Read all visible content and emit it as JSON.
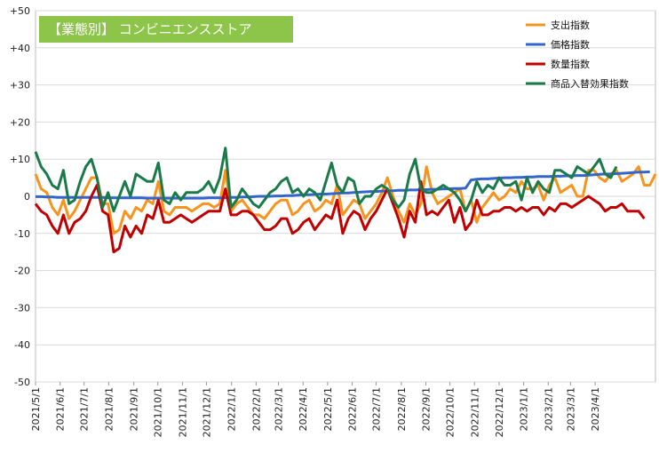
{
  "chart_data": {
    "type": "line",
    "title": "【業態別】 コンビニエンスストア",
    "xlabel": "",
    "ylabel": "",
    "ylim": [
      -50,
      50
    ],
    "y_ticks": [
      50,
      40,
      30,
      20,
      10,
      0,
      -10,
      -20,
      -30,
      -40,
      -50
    ],
    "y_tick_labels": [
      "+50",
      "+40",
      "+30",
      "+20",
      "+10",
      "0",
      "-10",
      "-20",
      "-30",
      "-40",
      "-50"
    ],
    "x_tick_labels": [
      "2021/5/1",
      "2021/6/1",
      "2021/7/1",
      "2021/8/1",
      "2021/9/1",
      "2021/10/1",
      "2021/11/1",
      "2021/12/1",
      "2022/1/1",
      "2022/2/1",
      "2022/3/1",
      "2022/4/1",
      "2022/5/1",
      "2022/6/1",
      "2022/7/1",
      "2022/8/1",
      "2022/9/1",
      "2022/10/1",
      "2022/11/1",
      "2022/12/1",
      "2023/1/1",
      "2023/2/1",
      "2023/3/1",
      "2023/4/1"
    ],
    "x_tick_weeks": [
      0,
      4.4,
      8.7,
      13.1,
      17.6,
      21.9,
      26.3,
      30.6,
      35.1,
      39.5,
      43.5,
      47.9,
      52.3,
      56.7,
      61.0,
      65.5,
      69.9,
      74.2,
      78.6,
      83.0,
      87.4,
      91.8,
      95.8,
      100.2
    ],
    "grid": true,
    "legend_position": "top-right",
    "series": [
      {
        "name": "支出指数",
        "color": "#f7941d",
        "values": [
          6,
          2,
          1,
          -3,
          -5,
          -1,
          -6,
          -4,
          -1,
          2,
          5,
          5,
          -2,
          -2,
          -10,
          -9,
          -4,
          -6,
          -3,
          -4,
          -1,
          -2,
          4,
          -4,
          -5,
          -3,
          -3,
          -3,
          -4,
          -3,
          -2,
          -2,
          -3,
          -2,
          7,
          -4,
          -2,
          -1,
          -3,
          -5,
          -5,
          -6,
          -4,
          -2,
          -1,
          -1,
          -5,
          -4,
          -2,
          -1,
          -4,
          -3,
          -1,
          -2,
          3,
          -5,
          -3,
          -1,
          -2,
          -6,
          -4,
          -2,
          1,
          5,
          0,
          -4,
          -7,
          -2,
          -5,
          -2,
          8,
          1,
          -2,
          -1,
          0,
          1,
          2,
          -4,
          -1,
          -7,
          -3,
          -1,
          1,
          -1,
          0,
          2,
          1,
          4,
          2,
          2,
          3,
          -1,
          3,
          5,
          1,
          2,
          3,
          0,
          0,
          7,
          7,
          5,
          4,
          6,
          7,
          4,
          5,
          6,
          8,
          3,
          3,
          6
        ]
      },
      {
        "name": "価格指数",
        "color": "#3366cc",
        "values": [
          -0.1,
          -0.1,
          -0.2,
          -0.2,
          -0.3,
          -0.3,
          -0.3,
          -0.3,
          -0.3,
          -0.3,
          -0.3,
          -0.3,
          -0.3,
          -0.4,
          -0.4,
          -0.4,
          -0.4,
          -0.4,
          -0.4,
          -0.4,
          -0.5,
          -0.5,
          -0.5,
          -0.5,
          -0.5,
          -0.5,
          -0.5,
          -0.5,
          -0.5,
          -0.5,
          -0.5,
          -0.4,
          -0.4,
          -0.4,
          -0.4,
          -0.3,
          -0.3,
          -0.2,
          -0.2,
          -0.1,
          0,
          0,
          0,
          0.1,
          0.1,
          0.2,
          0.2,
          0.3,
          0.4,
          0.4,
          0.5,
          0.6,
          0.6,
          0.7,
          0.8,
          0.9,
          0.9,
          1.0,
          1.1,
          1.2,
          1.3,
          1.3,
          1.4,
          1.5,
          1.5,
          1.6,
          1.6,
          1.7,
          1.7,
          1.8,
          1.8,
          1.9,
          1.9,
          2.0,
          2.0,
          2.1,
          2.1,
          2.2,
          4.4,
          4.6,
          4.7,
          4.7,
          4.8,
          4.9,
          5.0,
          5.0,
          5.1,
          5.1,
          5.2,
          5.2,
          5.3,
          5.3,
          5.3,
          5.4,
          5.4,
          5.5,
          5.5,
          5.6,
          5.6,
          5.7,
          5.8,
          5.9,
          6.0,
          6.0,
          6.1,
          6.2,
          6.3,
          6.4,
          6.5,
          6.5,
          6.6
        ]
      },
      {
        "name": "数量指数",
        "color": "#c00000",
        "values": [
          -2,
          -4,
          -5,
          -8,
          -10,
          -5,
          -10,
          -7,
          -6,
          -4,
          0,
          3,
          -4,
          -5,
          -15,
          -14,
          -8,
          -11,
          -8,
          -10,
          -5,
          -6,
          -1,
          -7,
          -7,
          -6,
          -5,
          -6,
          -7,
          -6,
          -5,
          -4,
          -4,
          -4,
          2,
          -5,
          -5,
          -4,
          -4,
          -5,
          -7,
          -9,
          -9,
          -8,
          -6,
          -6,
          -10,
          -9,
          -7,
          -6,
          -9,
          -7,
          -5,
          -6,
          -1,
          -10,
          -6,
          -4,
          -5,
          -9,
          -6,
          -4,
          -1,
          2,
          -2,
          -6,
          -11,
          -4,
          -7,
          4,
          -5,
          -4,
          -5,
          -3,
          -1,
          -7,
          -3,
          -9,
          -7,
          -1,
          -5,
          -5,
          -4,
          -4,
          -3,
          -3,
          -4,
          -3,
          -4,
          -3,
          -3,
          -5,
          -3,
          -4,
          -2,
          -2,
          -3,
          -2,
          -1,
          0,
          -1,
          -2,
          -4,
          -3,
          -3,
          -2,
          -4,
          -4,
          -4,
          -6
        ]
      },
      {
        "name": "商品入替効果指数",
        "color": "#1a7a4a",
        "values": [
          12,
          8,
          6,
          3,
          2,
          7,
          -2,
          -1,
          4,
          8,
          10,
          5,
          -3,
          1,
          -4,
          0,
          4,
          0,
          6,
          5,
          4,
          4,
          9,
          -1,
          -2,
          1,
          -1,
          1,
          1,
          1,
          2,
          4,
          1,
          5,
          13,
          -3,
          -1,
          2,
          0,
          -2,
          -3,
          -1,
          1,
          2,
          4,
          5,
          1,
          2,
          0,
          2,
          1,
          -1,
          4,
          9,
          3,
          1,
          5,
          4,
          -2,
          0,
          0,
          2,
          3,
          2,
          -1,
          -3,
          -1,
          6,
          10,
          2,
          1,
          1,
          2,
          3,
          2,
          1,
          -1,
          -4,
          -1,
          4,
          1,
          3,
          2,
          5,
          3,
          3,
          4,
          -1,
          5,
          1,
          4,
          2,
          1,
          7,
          7,
          6,
          5,
          8,
          7,
          6,
          8,
          10,
          6,
          5,
          8
        ]
      }
    ]
  }
}
